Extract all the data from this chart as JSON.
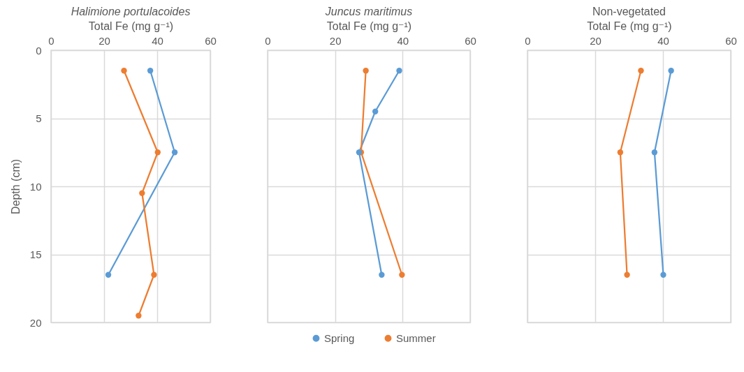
{
  "chart_data": [
    {
      "type": "line",
      "title": "Halimione portulacoides",
      "xlabel": "Total Fe (mg g⁻¹)",
      "ylabel": "Depth (cm)",
      "xlim": [
        0,
        60
      ],
      "xticks": [
        0,
        20,
        40,
        60
      ],
      "ylim": [
        20,
        0
      ],
      "yticks": [
        0,
        5,
        10,
        15,
        20
      ],
      "grid": true,
      "marker": "circle",
      "legend": "bottom",
      "series": [
        {
          "name": "Spring",
          "color": "#5b9bd5",
          "x": [
            37.4,
            46.6,
            21.6
          ],
          "values": [
            1.5,
            7.5,
            16.5
          ]
        },
        {
          "name": "Summer",
          "color": "#ed7d31",
          "x": [
            27.5,
            40.2,
            34.3,
            38.8,
            33.0
          ],
          "values": [
            1.5,
            7.5,
            10.5,
            16.5,
            19.5
          ]
        }
      ]
    },
    {
      "type": "line",
      "title": "Juncus maritimus",
      "xlabel": "Total Fe (mg g⁻¹)",
      "xlim": [
        0,
        60
      ],
      "xticks": [
        0,
        20,
        40,
        60
      ],
      "ylim": [
        20,
        0
      ],
      "yticks": [
        0,
        5,
        10,
        15,
        20
      ],
      "tick_labels": "x",
      "grid": true,
      "marker": "circle",
      "legend": "bottom",
      "series": [
        {
          "name": "Spring",
          "color": "#5b9bd5",
          "x": [
            39.0,
            31.9,
            27.1,
            33.8
          ],
          "values": [
            1.5,
            4.5,
            7.5,
            16.5
          ]
        },
        {
          "name": "Summer",
          "color": "#ed7d31",
          "x": [
            29.1,
            27.7,
            39.8
          ],
          "values": [
            1.5,
            7.5,
            16.5
          ]
        }
      ]
    },
    {
      "type": "line",
      "title": "Non-vegetated",
      "xlabel": "Total Fe (mg g⁻¹)",
      "xlim": [
        0,
        60
      ],
      "xticks": [
        0,
        20,
        40,
        60
      ],
      "ylim": [
        20,
        0
      ],
      "yticks": [
        0,
        5,
        10,
        15,
        20
      ],
      "tick_labels": "x",
      "grid": true,
      "marker": "circle",
      "legend": "bottom",
      "series": [
        {
          "name": "Spring",
          "color": "#5b9bd5",
          "x": [
            42.4,
            37.5,
            40.1
          ],
          "values": [
            1.5,
            7.5,
            16.5
          ]
        },
        {
          "name": "Summer",
          "color": "#ed7d31",
          "x": [
            33.5,
            27.4,
            29.4
          ],
          "values": [
            1.5,
            7.5,
            16.5
          ]
        }
      ]
    }
  ]
}
